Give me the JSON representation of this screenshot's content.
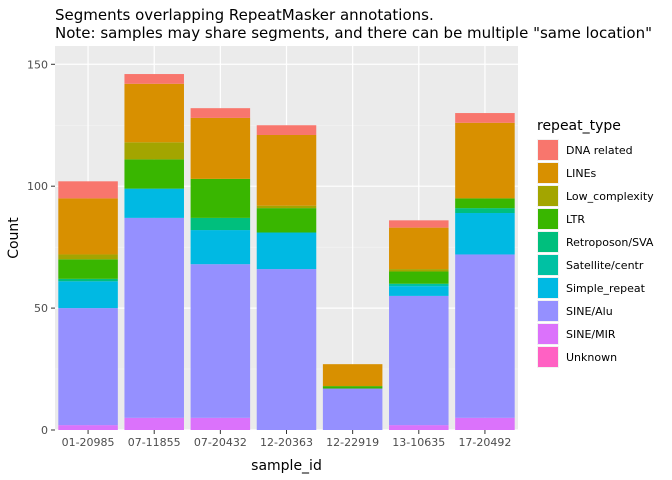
{
  "chart_data": {
    "type": "bar",
    "stacked": true,
    "title_lines": [
      "Segments overlapping RepeatMasker annotations.",
      "Note: samples may share segments, and there can be multiple \"same location\""
    ],
    "xlabel": "sample_id",
    "ylabel": "Count",
    "ylim": [
      0,
      150
    ],
    "yticks": [
      0,
      50,
      100,
      150
    ],
    "grid": true,
    "legend_title": "repeat_type",
    "legend_position": "right",
    "categories": [
      "01-20985",
      "07-11855",
      "07-20432",
      "12-20363",
      "12-22919",
      "13-10635",
      "17-20492"
    ],
    "series": [
      {
        "name": "Unknown",
        "color": "#FF61C3",
        "values": [
          0,
          0,
          0,
          0,
          0,
          0,
          0
        ]
      },
      {
        "name": "SINE/MIR",
        "color": "#DB72FB",
        "values": [
          2,
          5,
          5,
          0,
          0,
          2,
          5
        ]
      },
      {
        "name": "SINE/Alu",
        "color": "#9590FF",
        "values": [
          48,
          82,
          63,
          66,
          17,
          53,
          67
        ]
      },
      {
        "name": "Simple_repeat",
        "color": "#00B9E3",
        "values": [
          11,
          12,
          14,
          15,
          0,
          4,
          17
        ]
      },
      {
        "name": "Satellite/centr",
        "color": "#00C1A3",
        "values": [
          0,
          0,
          0,
          0,
          0,
          1,
          0
        ]
      },
      {
        "name": "Retroposon/SVA",
        "color": "#00BF7D",
        "values": [
          1,
          0,
          5,
          0,
          0,
          0,
          2
        ]
      },
      {
        "name": "LTR",
        "color": "#39B600",
        "values": [
          8,
          12,
          16,
          10,
          1,
          5,
          4
        ]
      },
      {
        "name": "Low_complexity",
        "color": "#A3A500",
        "values": [
          2,
          7,
          0,
          1,
          0,
          1,
          0
        ]
      },
      {
        "name": "LINEs",
        "color": "#D89000",
        "values": [
          23,
          24,
          25,
          29,
          9,
          17,
          31
        ]
      },
      {
        "name": "DNA related",
        "color": "#F8766D",
        "values": [
          7,
          4,
          4,
          4,
          0,
          3,
          4
        ]
      }
    ],
    "legend_order": [
      "DNA related",
      "LINEs",
      "Low_complexity",
      "LTR",
      "Retroposon/SVA",
      "Satellite/centr",
      "Simple_repeat",
      "SINE/Alu",
      "SINE/MIR",
      "Unknown"
    ]
  }
}
